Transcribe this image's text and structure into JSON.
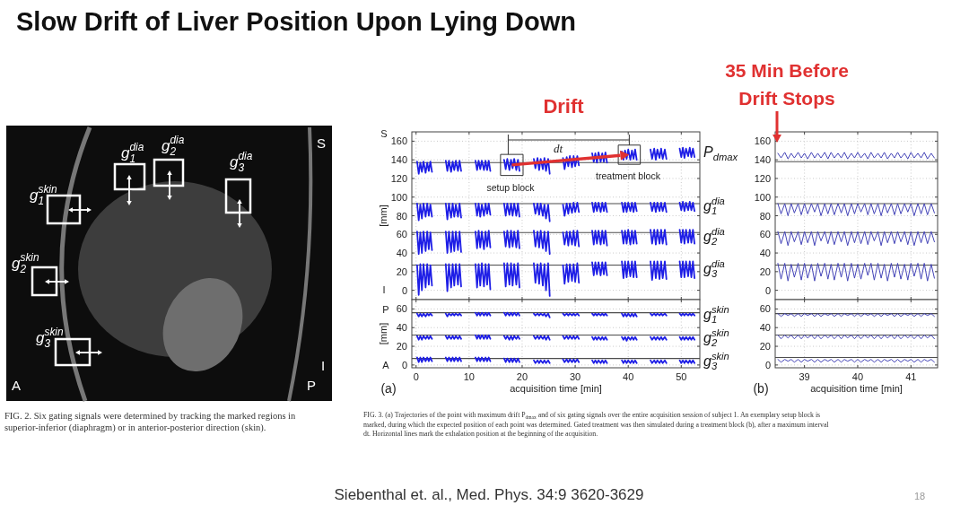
{
  "chart_data": [
    {
      "type": "other",
      "title": "Slow Drift of Liver Position Upon Lying Down",
      "annotations": [
        "g$_{1}$$^{dia}$",
        "g$_{2}$$^{dia}$",
        "S",
        "g$_{3}$$^{dia}$",
        "g$_{1}$$^{skin}$",
        "g$_{2}$$^{skin}$",
        "g$_{3}$$^{skin}$",
        "I",
        "A",
        "P",
        "FIG. 2. Six gating signals were determined by tracking the marked regions in superior-inferior (diaphragm) or in anterior-posterior direction (skin).",
        "Siebenthal et. al., Med. Phys. 34:9 3620-3629",
        "18"
      ]
    },
    {
      "type": "line",
      "x": [
        0.2,
        0.5,
        0.8,
        1.1,
        1.4,
        1.8,
        2.1,
        2.4,
        2.7,
        3.0,
        4.3,
        5.6,
        5.9,
        6.2,
        6.6,
        6.9,
        7.2,
        7.5,
        7.9,
        8.2,
        8.5,
        9.8,
        11.2,
        11.5,
        11.8,
        12.1,
        12.4,
        12.8,
        13.1,
        13.4,
        13.7,
        14.0,
        15.3,
        16.6,
        16.9,
        17.2,
        17.6,
        17.9,
        18.2,
        18.5,
        18.9,
        19.2,
        19.5,
        20.8,
        22.2,
        22.5,
        22.9,
        23.2,
        23.5,
        23.9,
        24.2,
        24.5,
        24.9,
        25.2,
        26.4,
        27.7,
        28.0,
        28.4,
        28.7,
        29.0,
        29.4,
        29.7,
        30.0,
        30.4,
        30.7,
        31.9,
        33.2,
        33.5,
        33.8,
        34.1,
        34.4,
        34.8,
        35.1,
        35.4,
        35.7,
        36.0,
        37.4,
        38.8,
        39.1,
        39.4,
        39.7,
        40.0,
        40.4,
        40.7,
        41.0,
        41.3,
        41.6,
        42.9,
        44.2,
        44.5,
        44.9,
        45.2,
        45.5,
        45.9,
        46.2,
        46.5,
        46.9,
        47.2,
        48.4,
        49.7,
        50.0,
        50.3,
        50.6,
        50.9,
        51.3,
        51.6,
        51.9,
        52.2,
        52.5
      ],
      "series": [
        {
          "name": "P$_{dmax}$",
          "color": "#1e1ee6",
          "values": [
            138,
            125,
            137,
            127,
            138,
            126,
            137,
            128,
            138,
            127,
            null,
            139,
            128,
            139,
            127,
            138,
            129,
            139,
            128,
            139,
            128,
            null,
            139,
            129,
            139,
            130,
            139,
            129,
            139,
            129,
            139,
            128,
            null,
            140,
            130,
            141,
            129,
            140,
            131,
            141,
            129,
            140,
            128,
            null,
            141,
            131,
            142,
            129,
            141,
            130,
            142,
            128,
            141,
            125,
            null,
            142,
            130,
            143,
            133,
            144,
            132,
            144,
            133,
            144,
            134,
            null,
            147,
            138,
            147,
            137,
            148,
            138,
            147,
            138,
            148,
            137,
            null,
            149,
            140,
            150,
            141,
            151,
            140,
            150,
            141,
            151,
            140,
            null,
            151,
            141,
            152,
            140,
            151,
            142,
            152,
            141,
            151,
            141,
            null,
            152,
            143,
            153,
            142,
            152,
            144,
            153,
            143,
            152,
            143
          ]
        },
        {
          "name": "g$_{1}$$^{dia}$",
          "color": "#1e1ee6",
          "values": [
            93,
            75,
            92,
            77,
            93,
            79,
            93,
            80,
            92,
            79,
            null,
            93,
            76,
            93,
            78,
            93,
            79,
            92,
            79,
            93,
            78,
            null,
            93,
            80,
            93,
            79,
            92,
            80,
            93,
            82,
            93,
            81,
            null,
            93,
            80,
            93,
            81,
            93,
            80,
            93,
            80,
            93,
            79,
            null,
            93,
            82,
            93,
            81,
            93,
            80,
            92,
            77,
            92,
            74,
            null,
            92,
            80,
            93,
            82,
            93,
            83,
            94,
            84,
            94,
            84,
            null,
            94,
            84,
            94,
            85,
            94,
            84,
            94,
            85,
            94,
            84,
            null,
            94,
            84,
            94,
            84,
            94,
            85,
            94,
            84,
            94,
            85,
            null,
            94,
            85,
            94,
            84,
            94,
            85,
            94,
            85,
            94,
            84,
            null,
            94,
            86,
            95,
            85,
            94,
            86,
            95,
            86,
            94,
            85
          ]
        },
        {
          "name": "g$_{2}$$^{dia}$",
          "color": "#1e1ee6",
          "values": [
            63,
            39,
            62,
            40,
            63,
            42,
            63,
            44,
            62,
            43,
            null,
            63,
            40,
            63,
            41,
            63,
            42,
            63,
            43,
            63,
            41,
            null,
            63,
            45,
            64,
            46,
            63,
            44,
            63,
            47,
            64,
            46,
            null,
            63,
            47,
            64,
            46,
            64,
            47,
            63,
            46,
            64,
            45,
            null,
            64,
            47,
            63,
            46,
            64,
            45,
            63,
            42,
            63,
            39,
            null,
            62,
            49,
            63,
            48,
            63,
            49,
            64,
            48,
            64,
            47,
            null,
            64,
            49,
            64,
            50,
            64,
            49,
            64,
            50,
            64,
            48,
            null,
            64,
            50,
            64,
            50,
            65,
            49,
            64,
            50,
            64,
            50,
            null,
            65,
            50,
            65,
            49,
            65,
            50,
            65,
            50,
            65,
            49,
            null,
            65,
            51,
            65,
            50,
            65,
            51,
            65,
            51,
            65,
            50
          ]
        },
        {
          "name": "g$_{3}$$^{dia}$",
          "color": "#1e1ee6",
          "values": [
            27,
            -5,
            28,
            0,
            28,
            3,
            28,
            6,
            27,
            5,
            null,
            28,
            -1,
            28,
            3,
            28,
            5,
            28,
            6,
            28,
            4,
            null,
            28,
            3,
            28,
            5,
            29,
            4,
            28,
            6,
            28,
            1,
            null,
            29,
            4,
            29,
            6,
            29,
            5,
            28,
            6,
            29,
            3,
            null,
            29,
            8,
            28,
            7,
            29,
            5,
            28,
            0,
            29,
            -6,
            null,
            27,
            7,
            28,
            9,
            28,
            10,
            28,
            9,
            29,
            8,
            null,
            30,
            16,
            30,
            17,
            30,
            16,
            30,
            17,
            30,
            16,
            null,
            31,
            13,
            31,
            14,
            31,
            15,
            31,
            14,
            31,
            14,
            null,
            31,
            11,
            31,
            13,
            31,
            12,
            31,
            13,
            31,
            12,
            null,
            31,
            14,
            31,
            14,
            31,
            15,
            31,
            14,
            31,
            13
          ]
        }
      ],
      "xlim": [
        -0.8,
        53.5
      ],
      "ylim": [
        -10,
        170
      ],
      "xticks": [
        0,
        10,
        20,
        30,
        40,
        50
      ],
      "yticks": [
        0,
        20,
        40,
        60,
        80,
        100,
        120,
        140,
        160
      ],
      "tick_labels": "y",
      "grid": true,
      "ylabel": "[mm]",
      "ref_lines": [
        {
          "axis": "y",
          "value": 137,
          "color": "#4d4d4d"
        },
        {
          "axis": "y",
          "value": 93,
          "color": "#4d4d4d"
        },
        {
          "axis": "y",
          "value": 62,
          "color": "#4d4d4d"
        },
        {
          "axis": "y",
          "value": 27,
          "color": "#4d4d4d"
        }
      ],
      "annotations": [
        "Drift",
        "dt",
        "setup block",
        "treatment block",
        "S",
        "I"
      ]
    },
    {
      "type": "line",
      "x": [
        0.2,
        0.5,
        0.8,
        1.1,
        1.4,
        1.8,
        2.1,
        2.4,
        2.7,
        3.0,
        4.3,
        5.6,
        5.9,
        6.2,
        6.6,
        6.9,
        7.2,
        7.5,
        7.9,
        8.2,
        8.5,
        9.8,
        11.2,
        11.5,
        11.8,
        12.1,
        12.4,
        12.8,
        13.1,
        13.4,
        13.7,
        14.0,
        15.3,
        16.6,
        16.9,
        17.2,
        17.6,
        17.9,
        18.2,
        18.5,
        18.9,
        19.2,
        19.5,
        20.8,
        22.2,
        22.5,
        22.9,
        23.2,
        23.5,
        23.9,
        24.2,
        24.5,
        24.9,
        25.2,
        26.4,
        27.7,
        28.0,
        28.4,
        28.7,
        29.0,
        29.4,
        29.7,
        30.0,
        30.4,
        30.7,
        31.9,
        33.2,
        33.5,
        33.8,
        34.1,
        34.4,
        34.8,
        35.1,
        35.4,
        35.7,
        36.0,
        37.4,
        38.8,
        39.1,
        39.4,
        39.7,
        40.0,
        40.4,
        40.7,
        41.0,
        41.3,
        41.6,
        42.9,
        44.2,
        44.5,
        44.9,
        45.2,
        45.5,
        45.9,
        46.2,
        46.5,
        46.9,
        47.2,
        48.4,
        49.7,
        50.0,
        50.3,
        50.6,
        50.9,
        51.3,
        51.6,
        51.9,
        52.2,
        52.5
      ],
      "series": [
        {
          "name": "g$_{1}$$^{skin}$",
          "color": "#1e1ee6",
          "values": [
            55,
            52,
            55,
            52,
            55,
            52,
            55,
            53,
            55,
            53,
            null,
            55,
            52,
            55,
            53,
            55,
            53,
            55,
            53,
            55,
            53,
            null,
            56,
            53,
            56,
            53,
            56,
            53,
            56,
            53,
            56,
            53,
            null,
            56,
            53,
            56,
            53,
            56,
            53,
            56,
            53,
            56,
            53,
            null,
            55,
            53,
            55,
            53,
            55,
            53,
            55,
            52,
            55,
            51,
            null,
            55,
            53,
            55,
            53,
            55,
            53,
            55,
            53,
            55,
            53,
            null,
            55,
            53,
            55,
            53,
            55,
            53,
            55,
            53,
            55,
            53,
            null,
            55,
            52,
            55,
            52,
            55,
            52,
            55,
            52,
            55,
            52,
            null,
            55,
            53,
            55,
            53,
            55,
            53,
            55,
            53,
            55,
            53,
            null,
            55,
            53,
            55,
            53,
            55,
            53,
            55,
            53,
            55,
            53
          ]
        },
        {
          "name": "g$_{2}$$^{skin}$",
          "color": "#1e1ee6",
          "values": [
            31,
            27,
            31,
            27,
            31,
            28,
            31,
            28,
            31,
            28,
            null,
            31,
            28,
            31,
            28,
            31,
            28,
            31,
            28,
            31,
            28,
            null,
            32,
            28,
            32,
            28,
            32,
            28,
            32,
            28,
            32,
            28,
            null,
            31,
            28,
            31,
            27,
            31,
            27,
            31,
            28,
            31,
            28,
            null,
            31,
            28,
            31,
            28,
            31,
            28,
            31,
            27,
            31,
            27,
            null,
            31,
            28,
            31,
            28,
            31,
            28,
            31,
            28,
            31,
            28,
            null,
            30,
            27,
            30,
            27,
            30,
            27,
            30,
            27,
            30,
            27,
            null,
            30,
            27,
            30,
            26,
            30,
            27,
            30,
            27,
            30,
            27,
            null,
            30,
            27,
            30,
            27,
            30,
            27,
            30,
            27,
            30,
            27,
            null,
            30,
            27,
            30,
            27,
            30,
            27,
            30,
            27,
            30,
            27
          ]
        },
        {
          "name": "g$_{3}$$^{skin}$",
          "color": "#1e1ee6",
          "values": [
            8,
            3,
            8,
            3,
            8,
            4,
            8,
            4,
            8,
            4,
            null,
            8,
            4,
            8,
            4,
            8,
            4,
            8,
            4,
            8,
            4,
            null,
            8,
            4,
            8,
            4,
            8,
            4,
            8,
            4,
            8,
            4,
            null,
            7,
            3,
            7,
            3,
            7,
            3,
            7,
            3,
            7,
            3,
            null,
            5,
            2,
            5,
            2,
            5,
            2,
            5,
            2,
            5,
            2,
            null,
            6,
            3,
            6,
            3,
            6,
            3,
            6,
            3,
            6,
            3,
            null,
            5,
            2,
            5,
            2,
            5,
            2,
            5,
            2,
            5,
            2,
            null,
            5,
            2,
            5,
            2,
            5,
            2,
            5,
            2,
            5,
            2,
            null,
            5,
            2,
            5,
            2,
            5,
            2,
            5,
            2,
            5,
            2,
            null,
            5,
            2,
            5,
            2,
            5,
            2,
            5,
            2,
            5,
            2
          ]
        }
      ],
      "xlim": [
        -0.8,
        53.5
      ],
      "ylim": [
        -3,
        70
      ],
      "xticks": [
        0,
        10,
        20,
        30,
        40,
        50
      ],
      "yticks": [
        0,
        20,
        40,
        60
      ],
      "grid": true,
      "xlabel": "acquisition time [min]",
      "ylabel": "[mm]",
      "ref_lines": [
        {
          "axis": "y",
          "value": 56,
          "color": "#4d4d4d"
        },
        {
          "axis": "y",
          "value": 32,
          "color": "#4d4d4d"
        },
        {
          "axis": "y",
          "value": 7,
          "color": "#4d4d4d"
        }
      ],
      "annotations": [
        "P",
        "A",
        "(a)",
        "FIG. 3. (a) Trajectories of the point with maximum drift P$_{dmax}$ and of six gating signals over the entire acquisition session of subject 1. An exemplary setup block is marked, during which the expected position of each point was determined. Gated treatment was then simulated during a treatment block (b), after a maximum interval dt. Horizontal lines mark the exhalation position at the beginning of the acquisition."
      ]
    },
    {
      "type": "line",
      "x": [
        38.5,
        38.56,
        38.63,
        38.69,
        38.75,
        38.81,
        38.88,
        38.94,
        39.0,
        39.06,
        39.13,
        39.19,
        39.25,
        39.31,
        39.38,
        39.44,
        39.5,
        39.56,
        39.63,
        39.69,
        39.75,
        39.81,
        39.88,
        39.94,
        40.0,
        40.06,
        40.13,
        40.19,
        40.25,
        40.31,
        40.38,
        40.44,
        40.5,
        40.56,
        40.63,
        40.69,
        40.75,
        40.81,
        40.88,
        40.94,
        41.0,
        41.06,
        41.13,
        41.19,
        41.25,
        41.31,
        41.38,
        41.44
      ],
      "series": [
        {
          "color": "#4444b8",
          "values": [
            147,
            142,
            148,
            141,
            147,
            142,
            148,
            142,
            147,
            141,
            148,
            142,
            147,
            142,
            148,
            141,
            148,
            142,
            147,
            142,
            148,
            141,
            147,
            142,
            148,
            142,
            147,
            141,
            148,
            142,
            147,
            142,
            148,
            141,
            147,
            142,
            148,
            142,
            147,
            141,
            148,
            142,
            147,
            142,
            148,
            141,
            147,
            142
          ]
        },
        {
          "color": "#4444b8",
          "values": [
            93,
            82,
            93,
            80,
            93,
            83,
            93,
            81,
            93,
            82,
            93,
            84,
            93,
            80,
            93,
            82,
            93,
            81,
            93,
            83,
            93,
            80,
            93,
            82,
            93,
            84,
            93,
            81,
            93,
            82,
            93,
            80,
            93,
            83,
            93,
            81,
            93,
            82,
            93,
            84,
            93,
            80,
            93,
            82,
            93,
            81,
            93,
            83
          ]
        },
        {
          "color": "#4444b8",
          "values": [
            63,
            50,
            63,
            48,
            63,
            52,
            63,
            49,
            63,
            51,
            63,
            48,
            63,
            53,
            63,
            50,
            63,
            49,
            63,
            52,
            63,
            48,
            63,
            51,
            63,
            50,
            63,
            49,
            63,
            53,
            63,
            48,
            63,
            51,
            63,
            50,
            63,
            52,
            63,
            49,
            63,
            48,
            63,
            51,
            63,
            50,
            63,
            52
          ]
        },
        {
          "color": "#4444b8",
          "values": [
            29,
            12,
            29,
            10,
            28,
            14,
            29,
            11,
            29,
            13,
            28,
            10,
            29,
            15,
            29,
            12,
            28,
            11,
            29,
            14,
            29,
            10,
            29,
            13,
            28,
            12,
            29,
            16,
            29,
            11,
            29,
            13,
            28,
            10,
            29,
            14,
            29,
            12,
            28,
            11,
            29,
            15,
            29,
            12,
            29,
            10,
            28,
            13
          ]
        }
      ],
      "xlim": [
        38.45,
        41.5
      ],
      "ylim": [
        -10,
        170
      ],
      "xticks": [
        39,
        40,
        41
      ],
      "yticks": [
        0,
        20,
        40,
        60,
        80,
        100,
        120,
        140,
        160
      ],
      "tick_labels": "y",
      "grid": true,
      "ref_lines": [
        {
          "axis": "y",
          "value": 138,
          "color": "#4d4d4d"
        },
        {
          "axis": "y",
          "value": 93,
          "color": "#4d4d4d"
        },
        {
          "axis": "y",
          "value": 62,
          "color": "#4d4d4d"
        },
        {
          "axis": "y",
          "value": 27,
          "color": "#4d4d4d"
        }
      ],
      "annotations": [
        "35 Min Before Drift Stops"
      ]
    },
    {
      "type": "line",
      "x": [
        38.5,
        38.56,
        38.63,
        38.69,
        38.75,
        38.81,
        38.88,
        38.94,
        39.0,
        39.06,
        39.13,
        39.19,
        39.25,
        39.31,
        39.38,
        39.44,
        39.5,
        39.56,
        39.63,
        39.69,
        39.75,
        39.81,
        39.88,
        39.94,
        40.0,
        40.06,
        40.13,
        40.19,
        40.25,
        40.31,
        40.38,
        40.44,
        40.5,
        40.56,
        40.63,
        40.69,
        40.75,
        40.81,
        40.88,
        40.94,
        41.0,
        41.06,
        41.13,
        41.19,
        41.25,
        41.31,
        41.38,
        41.44
      ],
      "series": [
        {
          "color": "#4444b8",
          "values": [
            55,
            52,
            55,
            53,
            55,
            52,
            55,
            52,
            55,
            53,
            55,
            52,
            55,
            52,
            55,
            53,
            55,
            52,
            55,
            52,
            55,
            53,
            55,
            52,
            55,
            52,
            55,
            53,
            55,
            52,
            55,
            52,
            55,
            53,
            55,
            52,
            55,
            52,
            55,
            53,
            55,
            52,
            55,
            52,
            55,
            53,
            55,
            52
          ]
        },
        {
          "color": "#4444b8",
          "values": [
            32,
            28,
            32,
            29,
            32,
            28,
            32,
            28,
            32,
            29,
            32,
            28,
            32,
            28,
            32,
            29,
            32,
            28,
            32,
            28,
            32,
            29,
            32,
            28,
            32,
            28,
            32,
            29,
            32,
            28,
            32,
            28,
            32,
            29,
            32,
            28,
            32,
            28,
            32,
            29,
            32,
            28,
            32,
            28,
            32,
            29,
            32,
            28
          ]
        },
        {
          "color": "#4444b8",
          "values": [
            6,
            3,
            6,
            4,
            6,
            3,
            6,
            3,
            6,
            4,
            6,
            3,
            6,
            3,
            6,
            4,
            6,
            3,
            6,
            3,
            6,
            4,
            6,
            3,
            6,
            3,
            6,
            4,
            6,
            3,
            6,
            3,
            6,
            4,
            6,
            3,
            6,
            3,
            6,
            4,
            6,
            3,
            6,
            3,
            6,
            4,
            6,
            3
          ]
        }
      ],
      "xlim": [
        38.45,
        41.5
      ],
      "ylim": [
        -3,
        70
      ],
      "xticks": [
        39,
        40,
        41
      ],
      "yticks": [
        0,
        20,
        40,
        60
      ],
      "grid": true,
      "xlabel": "acquisition time [min]",
      "ref_lines": [
        {
          "axis": "y",
          "value": 55,
          "color": "#4d4d4d"
        },
        {
          "axis": "y",
          "value": 32,
          "color": "#4d4d4d"
        },
        {
          "axis": "y",
          "value": 8,
          "color": "#4d4d4d"
        }
      ],
      "annotations": [
        "(b)"
      ]
    }
  ]
}
